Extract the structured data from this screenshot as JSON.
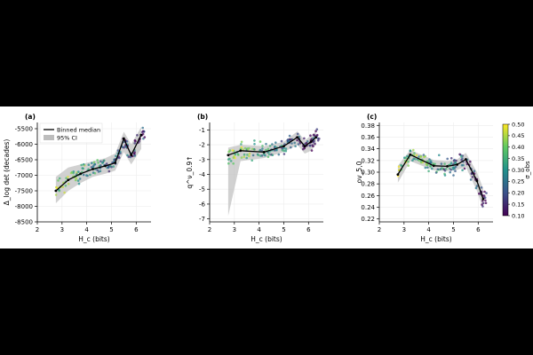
{
  "colors": {
    "band_bg": "#ffffff",
    "median": "#000000",
    "ci_fill": "#bdbdbd",
    "grid": "#ececec",
    "axis": "#000000",
    "colormap": [
      "#440154",
      "#3b528b",
      "#21918c",
      "#5ec962",
      "#fde725"
    ]
  },
  "colorbar": {
    "label": "σ_obs",
    "ticks": [
      "0.10",
      "0.15",
      "0.20",
      "0.25",
      "0.30",
      "0.35",
      "0.40",
      "0.45",
      "0.50"
    ],
    "range": [
      0.1,
      0.5
    ]
  },
  "chart_data": [
    {
      "type": "scatter",
      "panel_label": "(a)",
      "xlabel": "H_c (bits)",
      "ylabel": "Δ_log det (decades)",
      "xlim": [
        2,
        6.6
      ],
      "ylim": [
        -8500,
        -5300
      ],
      "xticks": [
        "2",
        "3",
        "4",
        "5",
        "6"
      ],
      "xtick_values": [
        2,
        3,
        4,
        5,
        6
      ],
      "yticks": [
        "-8500",
        "-8000",
        "-7500",
        "-7000",
        "-6500",
        "-6000",
        "-5500"
      ],
      "ytick_values": [
        -8500,
        -8000,
        -7500,
        -7000,
        -6500,
        -6000,
        -5500
      ],
      "grid": true,
      "legend": {
        "position": "top-left",
        "entries": [
          "Binned median",
          "95% CI"
        ]
      },
      "median": {
        "x": [
          2.75,
          3.25,
          3.75,
          4.25,
          4.75,
          5.15,
          5.5,
          5.8,
          6.2
        ],
        "y": [
          -7500,
          -7150,
          -6950,
          -6800,
          -6700,
          -6600,
          -5820,
          -6350,
          -5700
        ]
      },
      "ci_lower": [
        -7900,
        -7500,
        -7250,
        -7050,
        -6950,
        -6850,
        -6250,
        -6650,
        -6150
      ],
      "ci_upper": [
        -7050,
        -6750,
        -6650,
        -6550,
        -6450,
        -6300,
        -5600,
        -6000,
        -5450
      ]
    },
    {
      "type": "scatter",
      "panel_label": "(b)",
      "xlabel": "H_c (bits)",
      "ylabel": "q^ν_0.9↑",
      "xlim": [
        2,
        6.6
      ],
      "ylim": [
        -7.2,
        -0.5
      ],
      "xticks": [
        "2",
        "3",
        "4",
        "5",
        "6"
      ],
      "xtick_values": [
        2,
        3,
        4,
        5,
        6
      ],
      "yticks": [
        "-7",
        "-6",
        "-5",
        "-4",
        "-3",
        "-2",
        "-1"
      ],
      "ytick_values": [
        -7,
        -6,
        -5,
        -4,
        -3,
        -2,
        -1
      ],
      "grid": true,
      "median": {
        "x": [
          2.75,
          3.25,
          4.2,
          5.0,
          5.55,
          5.85,
          6.1,
          6.3
        ],
        "y": [
          -2.7,
          -2.4,
          -2.5,
          -2.1,
          -1.5,
          -2.1,
          -1.8,
          -1.5
        ]
      },
      "ci_lower": [
        -6.8,
        -3.1,
        -2.9,
        -2.5,
        -2.0,
        -2.6,
        -2.4,
        -2.0
      ],
      "ci_upper": [
        -2.2,
        -2.0,
        -2.1,
        -1.8,
        -1.1,
        -1.7,
        -1.4,
        -1.1
      ]
    },
    {
      "type": "scatter",
      "panel_label": "(c)",
      "xlabel": "H_c (bits)",
      "ylabel": "ov_5,0",
      "xlim": [
        2,
        6.6
      ],
      "ylim": [
        0.215,
        0.385
      ],
      "xticks": [
        "2",
        "3",
        "4",
        "5",
        "6"
      ],
      "xtick_values": [
        2,
        3,
        4,
        5,
        6
      ],
      "yticks": [
        "0.22",
        "0.24",
        "0.26",
        "0.28",
        "0.30",
        "0.32",
        "0.34",
        "0.36",
        "0.38"
      ],
      "ytick_values": [
        0.22,
        0.24,
        0.26,
        0.28,
        0.3,
        0.32,
        0.34,
        0.36,
        0.38
      ],
      "grid": true,
      "median": {
        "x": [
          2.75,
          3.25,
          4.2,
          4.75,
          5.15,
          5.5,
          5.95,
          6.2
        ],
        "y": [
          0.296,
          0.33,
          0.311,
          0.31,
          0.313,
          0.322,
          0.285,
          0.254
        ]
      },
      "ci_lower": [
        0.282,
        0.319,
        0.303,
        0.302,
        0.304,
        0.309,
        0.268,
        0.237
      ],
      "ci_upper": [
        0.311,
        0.338,
        0.321,
        0.319,
        0.322,
        0.333,
        0.3,
        0.272
      ]
    }
  ]
}
